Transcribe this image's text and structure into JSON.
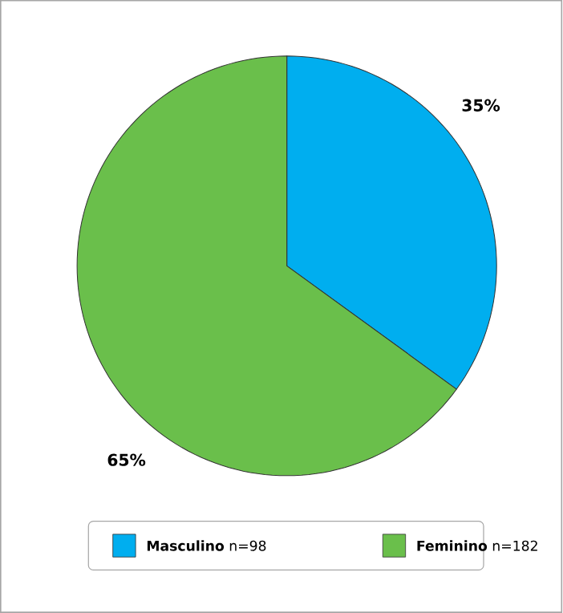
{
  "chart_data": {
    "type": "pie",
    "categories": [
      "**Masculino** n=98",
      "**Feminino** n=182"
    ],
    "values": [
      35,
      65
    ],
    "colors": [
      "#00aeef",
      "#6abf4b"
    ],
    "value_labels": [
      "35%",
      "65%"
    ],
    "legend": "bottom"
  }
}
